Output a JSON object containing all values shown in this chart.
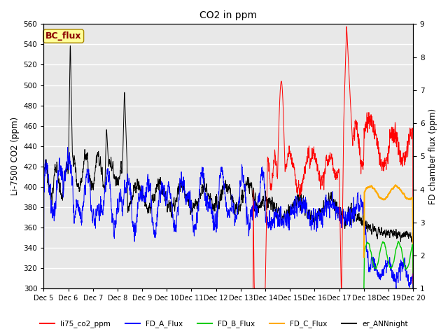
{
  "title": "CO2 in ppm",
  "ylabel_left": "Li-7500 CO2 (ppm)",
  "ylabel_right": "FD chamber flux (ppm)",
  "ylim_left": [
    300,
    560
  ],
  "ylim_right": [
    1.0,
    9.0
  ],
  "xtick_labels": [
    "Dec 5",
    "Dec 6",
    "Dec 7",
    "Dec 8",
    "Dec 9",
    "Dec 10",
    "Dec 11",
    "Dec 12",
    "Dec 13",
    "Dec 14",
    "Dec 15",
    "Dec 16",
    "Dec 17",
    "Dec 18",
    "Dec 19",
    "Dec 20"
  ],
  "colors": {
    "li75": "#ff0000",
    "FD_A": "#0000ff",
    "FD_B": "#00cc00",
    "FD_C": "#ffaa00",
    "er_ANN": "#000000"
  },
  "legend_labels": [
    "li75_co2_ppm",
    "FD_A_Flux",
    "FD_B_Flux",
    "FD_C_Flux",
    "er_ANNnight"
  ],
  "bc_flux_label": "BC_flux",
  "background_color": "#ffffff",
  "plot_bg_color": "#e8e8e8",
  "grid_color": "#ffffff"
}
